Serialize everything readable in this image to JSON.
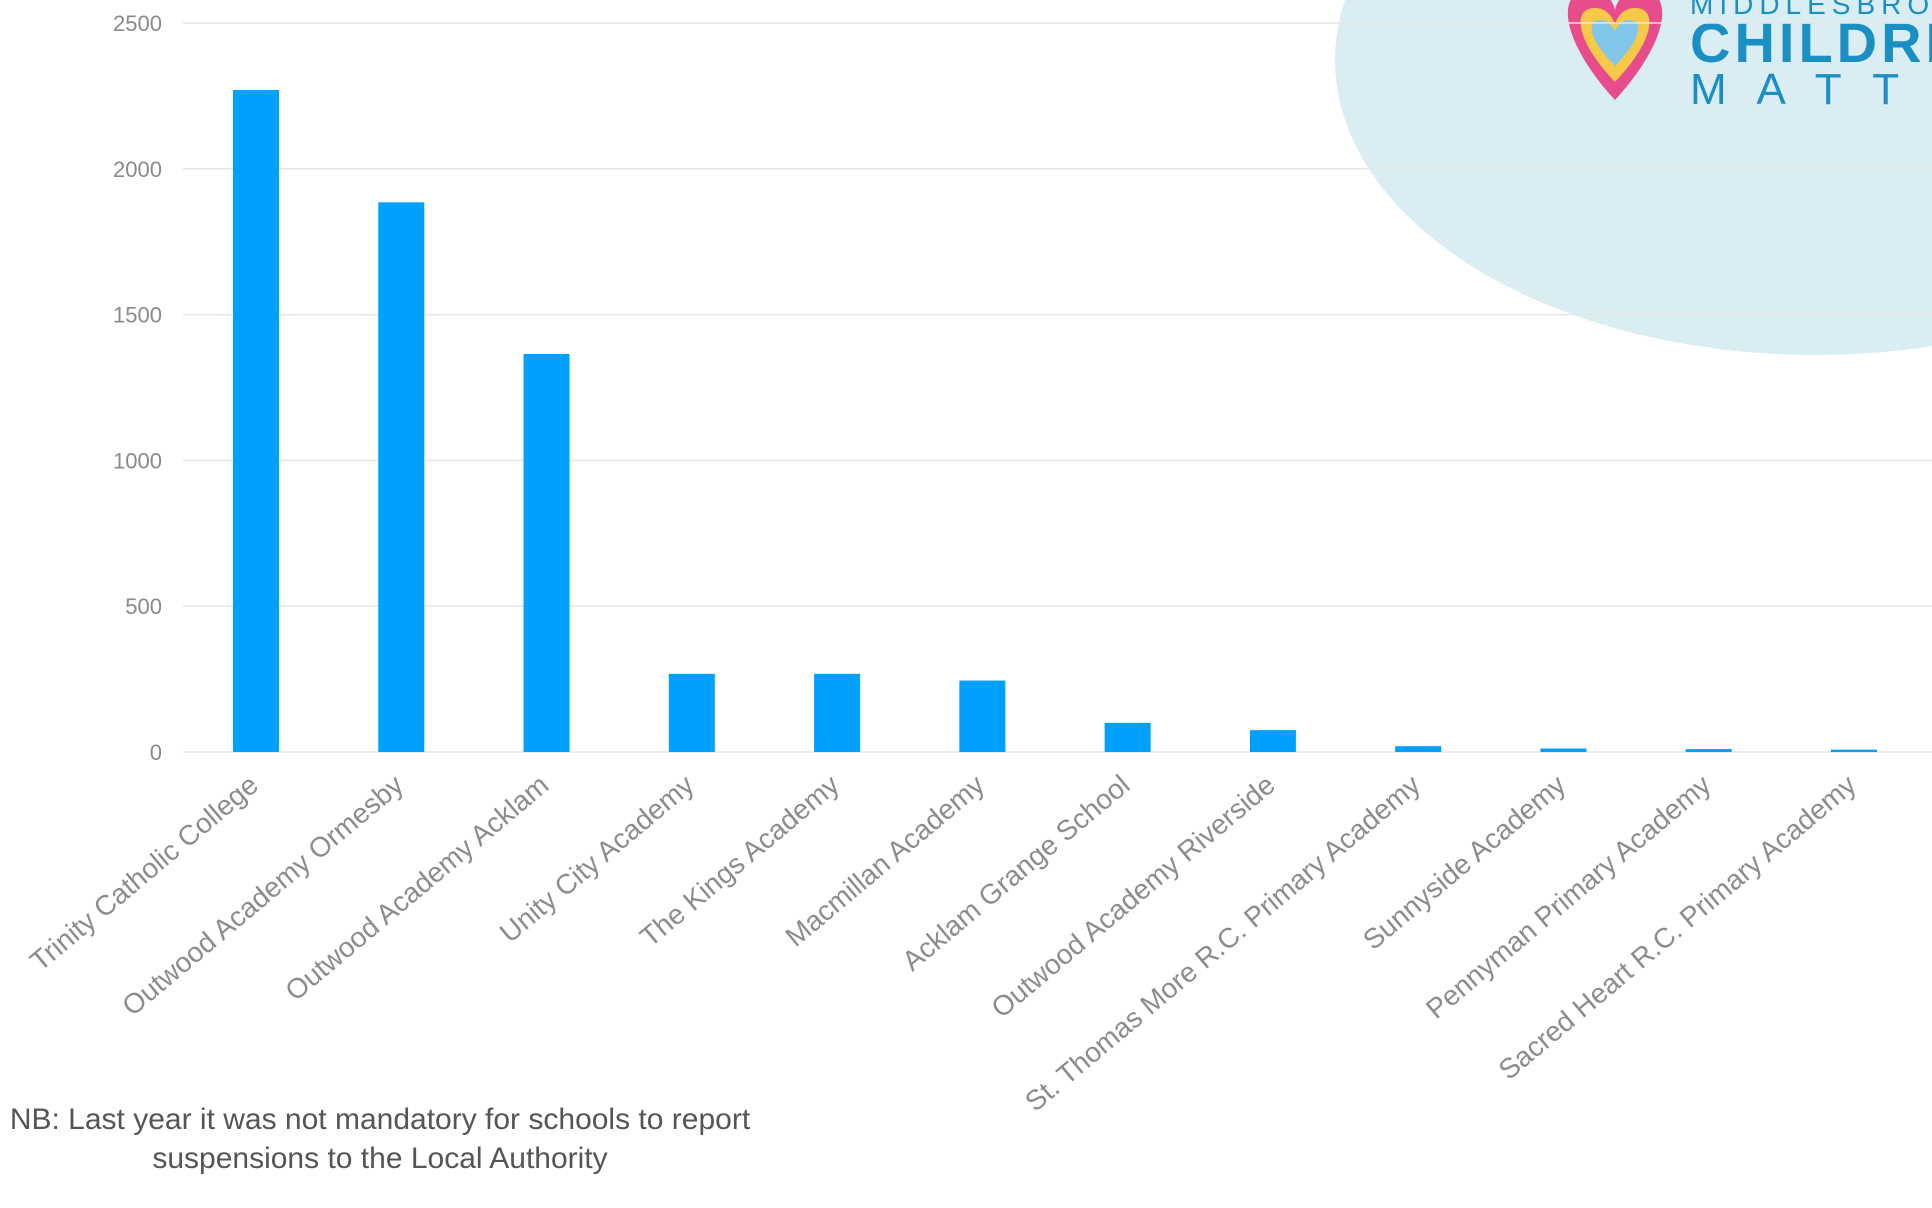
{
  "chart_data": {
    "type": "bar",
    "categories": [
      "Trinity Catholic College",
      "Outwood Academy Ormesby",
      "Outwood Academy Acklam",
      "Unity City Academy",
      "The Kings Academy",
      "Macmillan Academy",
      "Acklam Grange School",
      "Outwood Academy Riverside",
      "St. Thomas More R.C. Primary Academy",
      "Sunnyside Academy",
      "Pennyman Primary Academy",
      "Sacred Heart R.C. Primary Academy"
    ],
    "values": [
      2270,
      1885,
      1365,
      268,
      268,
      245,
      100,
      75,
      20,
      12,
      10,
      8
    ],
    "ylim": [
      0,
      2500
    ],
    "yticks": [
      0,
      500,
      1000,
      1500,
      2000,
      2500
    ],
    "grid": true,
    "colors": {
      "bar": "#00a0ff",
      "grid": "#e6e6e6",
      "axis_text": "#8a8a8a"
    }
  },
  "note": {
    "line1": "NB: Last year it was not mandatory for schools to report",
    "line2": "suspensions to the Local Authority"
  },
  "logo": {
    "line1": "MIDDLESBROU",
    "line2": "CHILDRE",
    "line3": "M A T T E",
    "colors": {
      "blob": "#d9edf2",
      "text": "#1a8fc4"
    }
  }
}
